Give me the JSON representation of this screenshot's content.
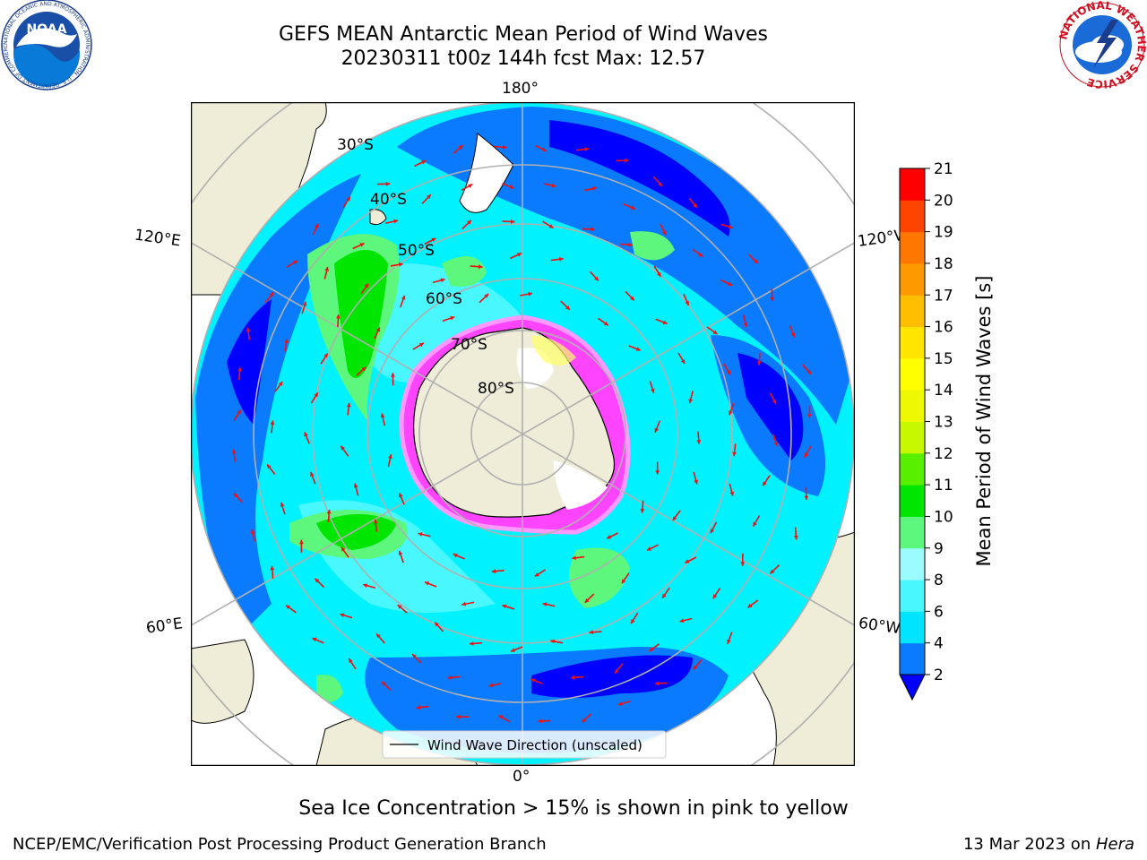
{
  "title": {
    "line1": "GEFS MEAN Antarctic Mean Period of Wind Waves",
    "line2": "20230311 t00z 144h fcst   Max: 12.57"
  },
  "logos": {
    "left": {
      "name": "noaa-logo",
      "text": "NOAA",
      "ring_text": "NATIONAL OCEANIC AND ATMOSPHERIC ADMINISTRATION · U.S. DEPARTMENT OF COMMERCE"
    },
    "right": {
      "name": "nws-logo",
      "ring_text": "NATIONAL WEATHER SERVICE"
    }
  },
  "map": {
    "projection": "south-polar-stereographic",
    "meridian_labels": [
      "180°",
      "120°E",
      "120°W",
      "60°E",
      "60°W",
      "0°"
    ],
    "latitude_labels": [
      "30°S",
      "40°S",
      "50°S",
      "60°S",
      "70°S",
      "80°S"
    ],
    "legend": "Wind Wave Direction (unscaled)",
    "colors": {
      "land": "#efedd8",
      "ocean_cyan": "#00f2ff",
      "ocean_light": "#49f7ff",
      "ocean_blue": "#0a7aff",
      "ocean_deep": "#0000ff",
      "light_green": "#5cf77c",
      "green": "#00e600",
      "sea_ice": "#ff44ff",
      "arrows": "#ee1111",
      "grid": "#b0b0b0"
    }
  },
  "colorbar": {
    "label": "Mean Period of Wind Waves [s]",
    "ticks": [
      "2",
      "4",
      "6",
      "8",
      "9",
      "10",
      "11",
      "12",
      "13",
      "14",
      "15",
      "16",
      "17",
      "18",
      "19",
      "20",
      "21"
    ],
    "colors": [
      "#0a7aff",
      "#00e4ff",
      "#49f7ff",
      "#9cfbff",
      "#5cf77c",
      "#00e600",
      "#59f000",
      "#c8f800",
      "#eef800",
      "#ffff00",
      "#ffe600",
      "#ffbf00",
      "#ff9900",
      "#ff7700",
      "#ff4400",
      "#ff0000"
    ],
    "under_color": "#0000ff"
  },
  "subtitle": "Sea Ice Concentration > 15% is shown in pink to yellow",
  "footer": {
    "left": "NCEP/EMC/Verification Post Processing Product Generation Branch",
    "right_prefix": "13 Mar 2023 on ",
    "right_host": "Hera"
  }
}
